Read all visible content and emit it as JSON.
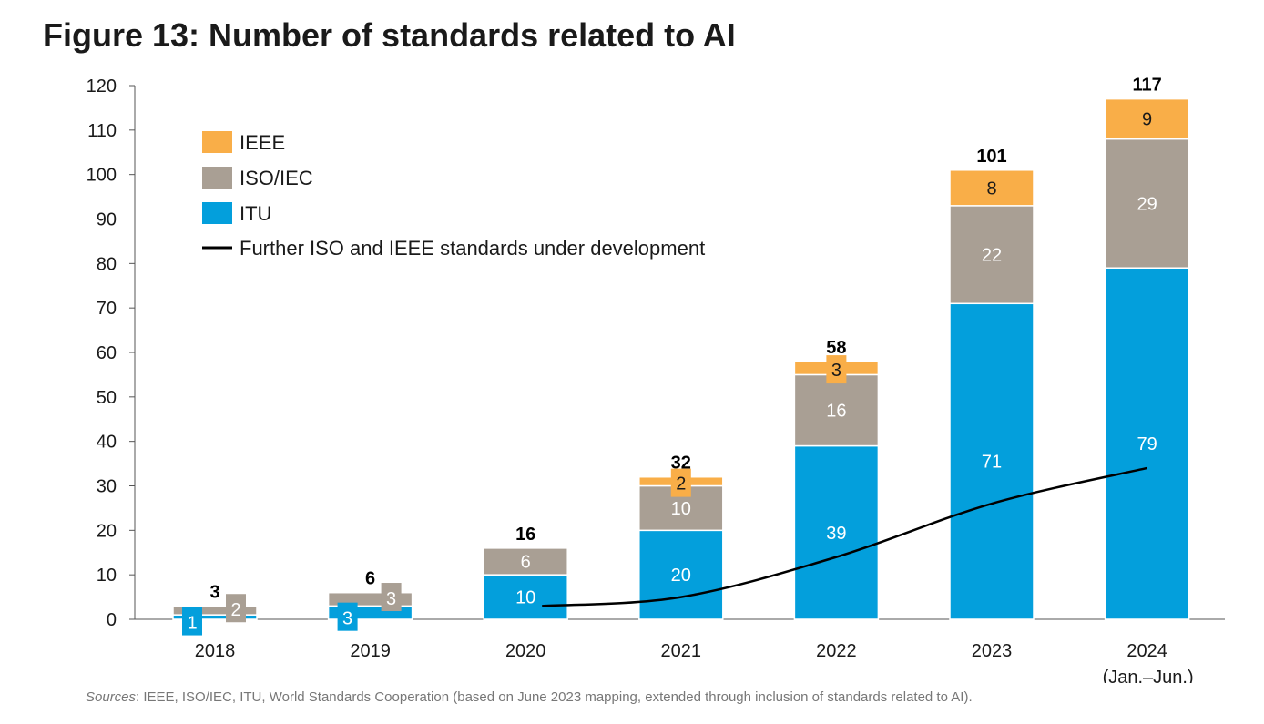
{
  "title": "Figure 13: Number of standards related to AI",
  "source": {
    "label": "Sources",
    "text": ": IEEE, ISO/IEC, ITU, World Standards Cooperation (based on June 2023 mapping, extended through inclusion of standards related to AI)."
  },
  "colors": {
    "ieee": "#F9AE48",
    "iso_iec": "#A99F94",
    "itu": "#039FDC",
    "line": "#000000",
    "axis": "#555555",
    "text": "#1a1a1a"
  },
  "chart_data": {
    "type": "bar",
    "stacked": true,
    "categories": [
      "2018",
      "2019",
      "2020",
      "2021",
      "2022",
      "2023",
      "2024"
    ],
    "category_sublabels": [
      "",
      "",
      "",
      "",
      "",
      "",
      "(Jan.–Jun.)"
    ],
    "series": [
      {
        "name": "ITU",
        "values": [
          1,
          3,
          10,
          20,
          39,
          71,
          79
        ]
      },
      {
        "name": "ISO/IEC",
        "values": [
          2,
          3,
          6,
          10,
          16,
          22,
          29
        ]
      },
      {
        "name": "IEEE",
        "values": [
          0,
          0,
          0,
          2,
          3,
          8,
          9
        ]
      }
    ],
    "totals": [
      3,
      6,
      16,
      32,
      58,
      101,
      117
    ],
    "line": {
      "name": "Further ISO and IEEE standards under development",
      "x": [
        "2020",
        "2021",
        "2022",
        "2023",
        "2024"
      ],
      "values": [
        3,
        5,
        14,
        26,
        34
      ]
    },
    "ylim": [
      0,
      120
    ],
    "yticks": [
      0,
      10,
      20,
      30,
      40,
      50,
      60,
      70,
      80,
      90,
      100,
      110,
      120
    ],
    "legend_position": "top-left",
    "legend": [
      {
        "name": "IEEE",
        "kind": "box",
        "color_key": "ieee"
      },
      {
        "name": "ISO/IEC",
        "kind": "box",
        "color_key": "iso_iec"
      },
      {
        "name": "ITU",
        "kind": "box",
        "color_key": "itu"
      },
      {
        "name": "Further ISO and IEEE standards under development",
        "kind": "line",
        "color_key": "line"
      }
    ],
    "grid": false,
    "xlabel": "",
    "ylabel": ""
  }
}
